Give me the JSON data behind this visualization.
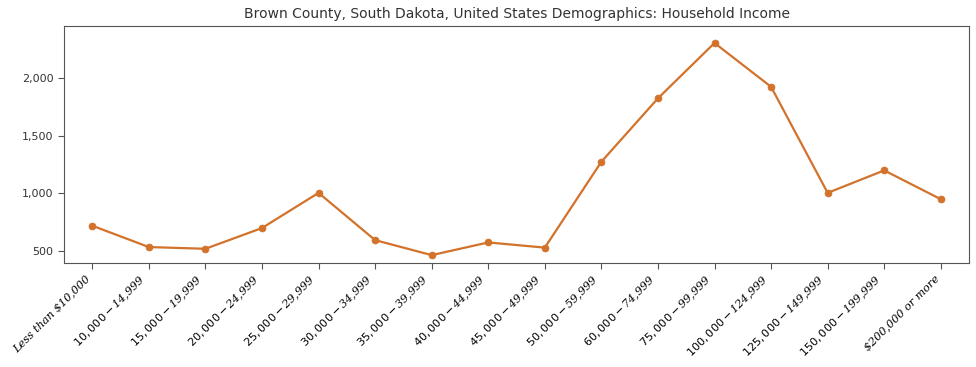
{
  "title": "Brown County, South Dakota, United States Demographics: Household Income",
  "categories": [
    "Less than $10,000",
    "$10,000 - $14,999",
    "$15,000 - $19,999",
    "$20,000 - $24,999",
    "$25,000 - $29,999",
    "$30,000 - $34,999",
    "$35,000 - $39,999",
    "$40,000 - $44,999",
    "$45,000 - $49,999",
    "$50,000 - $59,999",
    "$60,000 - $74,999",
    "$75,000 - $99,999",
    "$100,000 - $124,999",
    "$125,000 - $149,999",
    "$150,000 - $199,999",
    "$200,000 or more"
  ],
  "values": [
    720,
    535,
    520,
    700,
    1005,
    595,
    465,
    575,
    530,
    1275,
    1825,
    2305,
    1925,
    1005,
    1200,
    950
  ],
  "line_color": "#d2722b",
  "marker_color": "#d2722b",
  "marker_style": "o",
  "marker_size": 5,
  "line_width": 1.6,
  "ylim": [
    400,
    2450
  ],
  "yticks": [
    500,
    1000,
    1500,
    2000
  ],
  "background_color": "#ffffff",
  "title_fontsize": 10,
  "tick_fontsize": 8,
  "spine_color": "#555555"
}
